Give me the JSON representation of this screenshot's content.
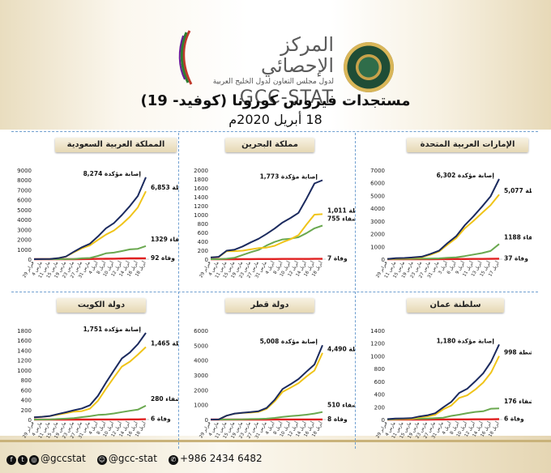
{
  "header": {
    "org_ar": "المركز الإحصائي",
    "org_sub": "لدول مجلس التعاون لدول الخليج العربية",
    "org_en": "GCC-STAT",
    "title": "مستجدات فيروس كورونا (كوفيد- 19)",
    "date": "18 أبريل 2020م"
  },
  "footer": {
    "handle1": "@gccstat",
    "handle2": "@gcc-stat",
    "phone": "+986 2434 6482"
  },
  "colors": {
    "confirmed": "#1b2a5e",
    "active": "#f0c419",
    "recovered": "#6aa84f",
    "deaths": "#e02020"
  },
  "chart_data": [
    {
      "type": "line",
      "title": "المملكة العربية السعودية",
      "x": [
        "29 فبراير",
        "4 مارس",
        "11 مارس",
        "15 مارس",
        "19 مارس",
        "23 مارس",
        "27 مارس",
        "31 مارس",
        "4 أبريل",
        "8 أبريل",
        "10 أبريل",
        "12 أبريل",
        "14 أبريل",
        "16 أبريل",
        "18 أبريل"
      ],
      "ylim": [
        0,
        9000
      ],
      "yticks": [
        0,
        1000,
        2000,
        3000,
        4000,
        5000,
        6000,
        7000,
        8000,
        9000
      ],
      "series": [
        {
          "key": "confirmed",
          "values": [
            0,
            5,
            20,
            100,
            270,
            760,
            1200,
            1560,
            2300,
            3120,
            3650,
            4460,
            5370,
            6380,
            8274
          ],
          "label": "8,274 إصابة مؤكدة"
        },
        {
          "key": "active",
          "values": [
            0,
            5,
            20,
            95,
            260,
            700,
            1100,
            1400,
            1950,
            2480,
            2900,
            3530,
            4290,
            5230,
            6853
          ],
          "label": "نشطة 6,853"
        },
        {
          "key": "recovered",
          "values": [
            0,
            0,
            0,
            1,
            6,
            28,
            90,
            120,
            330,
            590,
            660,
            820,
            990,
            1050,
            1329
          ],
          "label": "شفاء 1329"
        },
        {
          "key": "deaths",
          "values": [
            0,
            0,
            0,
            0,
            0,
            1,
            8,
            14,
            29,
            38,
            52,
            65,
            79,
            83,
            92
          ],
          "label": "وفاة 92"
        }
      ]
    },
    {
      "type": "line",
      "title": "مملكة البحرين",
      "x": [
        "29 فبراير",
        "4 مارس",
        "11 مارس",
        "15 مارس",
        "19 مارس",
        "23 مارس",
        "27 مارس",
        "31 مارس",
        "4 أبريل",
        "8 أبريل",
        "10 أبريل",
        "12 أبريل",
        "14 أبريل",
        "16 أبريل",
        "18 أبريل"
      ],
      "ylim": [
        0,
        2000
      ],
      "yticks": [
        0,
        200,
        400,
        600,
        800,
        1000,
        1200,
        1400,
        1600,
        1800,
        2000
      ],
      "series": [
        {
          "key": "confirmed",
          "values": [
            38,
            52,
            190,
            214,
            285,
            377,
            458,
            567,
            688,
            823,
            925,
            1040,
            1360,
            1700,
            1773
          ],
          "label": "1,773 إصابة مؤكدة"
        },
        {
          "key": "active",
          "values": [
            38,
            50,
            180,
            180,
            190,
            220,
            250,
            260,
            300,
            380,
            450,
            540,
            780,
            1000,
            1011
          ],
          "label": "نشطة 1,011"
        },
        {
          "key": "recovered",
          "values": [
            0,
            0,
            10,
            33,
            95,
            157,
            208,
            307,
            388,
            443,
            460,
            492,
            585,
            693,
            755
          ],
          "label": "755 شفاء"
        },
        {
          "key": "deaths",
          "values": [
            0,
            0,
            0,
            0,
            1,
            1,
            3,
            4,
            4,
            5,
            6,
            6,
            6,
            7,
            7
          ],
          "label": "وفاة 7"
        }
      ]
    },
    {
      "type": "line",
      "title": "الإمارات العربية المتحدة",
      "x": [
        "29 فبراير",
        "11 مارس",
        "15 مارس",
        "19 مارس",
        "23 مارس",
        "27 مارس",
        "31 مارس",
        "3 أبريل",
        "6 أبريل",
        "9 أبريل",
        "11 أبريل",
        "13 أبريل",
        "15 أبريل",
        "17 أبريل"
      ],
      "ylim": [
        0,
        7000
      ],
      "yticks": [
        0,
        1000,
        2000,
        3000,
        4000,
        5000,
        6000,
        7000
      ],
      "series": [
        {
          "key": "confirmed",
          "values": [
            21,
            74,
            98,
            140,
            198,
            405,
            664,
            1264,
            1799,
            2659,
            3360,
            4123,
            4933,
            6302
          ],
          "label": "6,302 إصابة مؤكدة"
        },
        {
          "key": "active",
          "values": [
            16,
            56,
            71,
            108,
            152,
            350,
            600,
            1140,
            1650,
            2420,
            3000,
            3630,
            4240,
            5077
          ],
          "label": "نشطة 5,077"
        },
        {
          "key": "recovered",
          "values": [
            5,
            17,
            26,
            31,
            41,
            52,
            61,
            108,
            137,
            239,
            360,
            480,
            640,
            1188
          ],
          "label": "شفاء 1188"
        },
        {
          "key": "deaths",
          "values": [
            0,
            0,
            0,
            0,
            2,
            2,
            5,
            8,
            11,
            12,
            16,
            22,
            28,
            37
          ],
          "label": "وفاة 37"
        }
      ]
    },
    {
      "type": "line",
      "title": "دولة الكويت",
      "x": [
        "29 فبراير",
        "4 مارس",
        "11 مارس",
        "15 مارس",
        "19 مارس",
        "23 مارس",
        "27 مارس",
        "31 مارس",
        "4 أبريل",
        "8 أبريل",
        "10 أبريل",
        "12 أبريل",
        "14 أبريل",
        "16 أبريل",
        "18 أبريل"
      ],
      "ylim": [
        0,
        1800
      ],
      "yticks": [
        0,
        200,
        400,
        600,
        800,
        1000,
        1200,
        1400,
        1600,
        1800
      ],
      "series": [
        {
          "key": "confirmed",
          "values": [
            45,
            56,
            72,
            112,
            148,
            189,
            225,
            289,
            479,
            743,
            993,
            1234,
            1355,
            1524,
            1751
          ],
          "label": "1,751 إصابة مؤكدة"
        },
        {
          "key": "active",
          "values": [
            45,
            56,
            70,
            100,
            130,
            160,
            170,
            220,
            380,
            620,
            850,
            1070,
            1170,
            1310,
            1465
          ],
          "label": "نشطة 1,465"
        },
        {
          "key": "recovered",
          "values": [
            0,
            0,
            2,
            12,
            18,
            27,
            49,
            67,
            93,
            102,
            123,
            150,
            176,
            200,
            280
          ],
          "label": "شفاء 280"
        },
        {
          "key": "deaths",
          "values": [
            0,
            0,
            0,
            0,
            0,
            0,
            0,
            0,
            1,
            1,
            1,
            2,
            3,
            3,
            6
          ],
          "label": "وفاة 6"
        }
      ]
    },
    {
      "type": "line",
      "title": "دولة قطر",
      "x": [
        "29 فبراير",
        "4 مارس",
        "11 مارس",
        "15 مارس",
        "19 مارس",
        "23 مارس",
        "27 مارس",
        "31 مارس",
        "4 أبريل",
        "8 أبريل",
        "10 أبريل",
        "12 أبريل",
        "14 أبريل",
        "16 أبريل",
        "18 أبريل"
      ],
      "ylim": [
        0,
        6000
      ],
      "yticks": [
        0,
        1000,
        2000,
        3000,
        4000,
        5000,
        6000
      ],
      "series": [
        {
          "key": "confirmed",
          "values": [
            0,
            8,
            262,
            401,
            460,
            501,
            562,
            781,
            1325,
            2057,
            2376,
            2728,
            3231,
            3711,
            5008
          ],
          "label": "5,008 إصابة مؤكدة"
        },
        {
          "key": "active",
          "values": [
            0,
            8,
            262,
            397,
            450,
            470,
            520,
            718,
            1215,
            1860,
            2150,
            2450,
            2900,
            3300,
            4490
          ],
          "label": "نشطة 4,490"
        },
        {
          "key": "recovered",
          "values": [
            0,
            0,
            0,
            4,
            10,
            33,
            43,
            62,
            109,
            178,
            233,
            275,
            328,
            406,
            510
          ],
          "label": "شفاء 510"
        },
        {
          "key": "deaths",
          "values": [
            0,
            0,
            0,
            0,
            0,
            0,
            0,
            1,
            3,
            6,
            6,
            6,
            7,
            7,
            8
          ],
          "label": "وفاة 8"
        }
      ]
    },
    {
      "type": "line",
      "title": "سلطنة عمان",
      "x": [
        "29 فبراير",
        "4 مارس",
        "11 مارس",
        "15 مارس",
        "19 مارس",
        "23 مارس",
        "27 مارس",
        "31 مارس",
        "4 أبريل",
        "8 أبريل",
        "10 أبريل",
        "12 أبريل",
        "14 أبريل",
        "16 أبريل",
        "18 أبريل"
      ],
      "ylim": [
        0,
        1400
      ],
      "yticks": [
        0,
        200,
        400,
        600,
        800,
        1000,
        1200,
        1400
      ],
      "series": [
        {
          "key": "confirmed",
          "values": [
            6,
            16,
            18,
            22,
            48,
            66,
            99,
            192,
            277,
            419,
            484,
            599,
            727,
            910,
            1180
          ],
          "label": "1,180 إصابة مؤكدة"
        },
        {
          "key": "active",
          "values": [
            6,
            12,
            10,
            10,
            35,
            50,
            75,
            160,
            220,
            340,
            380,
            470,
            580,
            740,
            998
          ],
          "label": "نشطة 998"
        },
        {
          "key": "recovered",
          "values": [
            0,
            4,
            8,
            12,
            13,
            16,
            23,
            29,
            57,
            77,
            100,
            120,
            130,
            170,
            176
          ],
          "label": "شفاء 176"
        },
        {
          "key": "deaths",
          "values": [
            0,
            0,
            0,
            0,
            0,
            0,
            1,
            1,
            2,
            2,
            3,
            4,
            4,
            4,
            6
          ],
          "label": "وفاة 6"
        }
      ]
    }
  ]
}
